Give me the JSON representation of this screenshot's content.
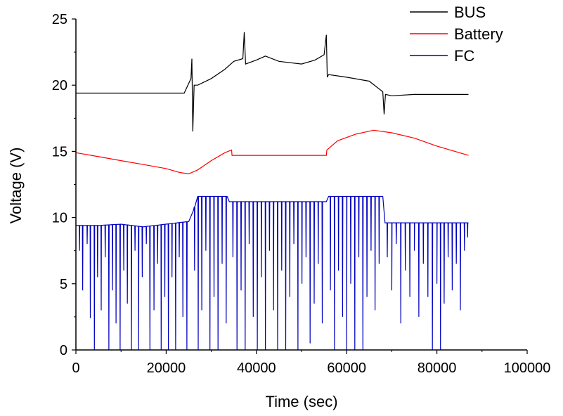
{
  "chart_data": {
    "type": "line",
    "xlabel": "Time (sec)",
    "ylabel": "Voltage (V)",
    "xlim": [
      0,
      100000
    ],
    "ylim": [
      0,
      25
    ],
    "xticks": [
      0,
      20000,
      40000,
      60000,
      80000,
      100000
    ],
    "xtick_labels": [
      "0",
      "20000",
      "40000",
      "60000",
      "80000",
      "100000"
    ],
    "yticks": [
      0,
      5,
      10,
      15,
      20,
      25
    ],
    "ytick_labels": [
      "0",
      "5",
      "10",
      "15",
      "20",
      "25"
    ],
    "grid": false,
    "legend_position": "top-right",
    "series": [
      {
        "name": "BUS",
        "color": "#000000",
        "x": [
          0,
          5000,
          10000,
          15000,
          20000,
          24000,
          25500,
          25700,
          25900,
          26200,
          27000,
          30000,
          33000,
          35000,
          37000,
          37300,
          37600,
          40000,
          42000,
          45000,
          50000,
          53000,
          55000,
          55500,
          55700,
          56000,
          60000,
          65000,
          68000,
          68300,
          68600,
          70000,
          75000,
          80000,
          87000
        ],
        "values": [
          19.4,
          19.4,
          19.4,
          19.4,
          19.4,
          19.4,
          20.5,
          22.0,
          16.5,
          20.0,
          20.0,
          20.5,
          21.2,
          21.8,
          22.0,
          24.0,
          21.6,
          21.9,
          22.2,
          21.8,
          21.6,
          21.9,
          22.3,
          23.8,
          20.6,
          20.8,
          20.6,
          20.3,
          19.5,
          17.8,
          19.3,
          19.2,
          19.3,
          19.3,
          19.3
        ]
      },
      {
        "name": "Battery",
        "color": "#ff0000",
        "x": [
          0,
          5000,
          10000,
          15000,
          20000,
          23000,
          25000,
          27000,
          30000,
          33000,
          34500,
          34600,
          40000,
          45000,
          50000,
          55500,
          55600,
          58000,
          62000,
          66000,
          70000,
          75000,
          80000,
          87000
        ],
        "values": [
          14.9,
          14.6,
          14.3,
          14.0,
          13.7,
          13.4,
          13.3,
          13.6,
          14.3,
          14.9,
          15.1,
          14.7,
          14.7,
          14.7,
          14.7,
          14.7,
          15.1,
          15.8,
          16.3,
          16.6,
          16.4,
          16.0,
          15.4,
          14.7
        ]
      },
      {
        "name": "FC",
        "color": "#0000c0",
        "x": [
          0,
          5000,
          10000,
          15000,
          20000,
          25000,
          26000,
          27000,
          30000,
          33500,
          34000,
          40000,
          45000,
          50000,
          55500,
          56000,
          60000,
          65000,
          68000,
          68500,
          70000,
          75000,
          80000,
          87000
        ],
        "values": [
          9.4,
          9.4,
          9.5,
          9.3,
          9.5,
          9.7,
          10.5,
          11.6,
          11.6,
          11.6,
          11.2,
          11.2,
          11.2,
          11.2,
          11.2,
          11.6,
          11.6,
          11.6,
          11.6,
          9.6,
          9.6,
          9.6,
          9.6,
          9.6
        ],
        "dips": [
          [
            800,
            7.5
          ],
          [
            1500,
            4.5
          ],
          [
            2500,
            8.0
          ],
          [
            3200,
            2.4
          ],
          [
            4100,
            0.0
          ],
          [
            4800,
            5.5
          ],
          [
            5600,
            3.0
          ],
          [
            6500,
            7.0
          ],
          [
            7300,
            0.0
          ],
          [
            8100,
            4.5
          ],
          [
            8900,
            2.0
          ],
          [
            9800,
            0.0
          ],
          [
            10600,
            6.0
          ],
          [
            11400,
            3.5
          ],
          [
            12300,
            0.0
          ],
          [
            13100,
            7.5
          ],
          [
            13900,
            0.0
          ],
          [
            14700,
            5.5
          ],
          [
            15600,
            8.0
          ],
          [
            16400,
            0.0
          ],
          [
            17300,
            3.0
          ],
          [
            18100,
            6.5
          ],
          [
            18900,
            0.0
          ],
          [
            19700,
            4.0
          ],
          [
            20500,
            0.0
          ],
          [
            21300,
            5.5
          ],
          [
            22100,
            0.0
          ],
          [
            22900,
            7.0
          ],
          [
            23700,
            2.5
          ],
          [
            24600,
            0.0
          ],
          [
            26300,
            6.0
          ],
          [
            27100,
            0.0
          ],
          [
            27900,
            3.0
          ],
          [
            28800,
            7.5
          ],
          [
            29700,
            0.0
          ],
          [
            30600,
            4.0
          ],
          [
            31500,
            0.0
          ],
          [
            32400,
            6.5
          ],
          [
            33300,
            2.0
          ],
          [
            34800,
            7.0
          ],
          [
            35700,
            0.0
          ],
          [
            36600,
            4.5
          ],
          [
            37500,
            0.0
          ],
          [
            38400,
            8.0
          ],
          [
            39300,
            2.5
          ],
          [
            40200,
            0.0
          ],
          [
            41100,
            5.5
          ],
          [
            42000,
            0.0
          ],
          [
            42900,
            7.5
          ],
          [
            43800,
            3.0
          ],
          [
            44700,
            0.0
          ],
          [
            45600,
            6.0
          ],
          [
            46500,
            0.0
          ],
          [
            47400,
            4.0
          ],
          [
            48300,
            8.0
          ],
          [
            49200,
            0.0
          ],
          [
            50100,
            5.0
          ],
          [
            51000,
            7.0
          ],
          [
            51900,
            0.5
          ],
          [
            52800,
            3.5
          ],
          [
            53700,
            6.5
          ],
          [
            54600,
            2.0
          ],
          [
            56400,
            4.5
          ],
          [
            57300,
            0.0
          ],
          [
            58200,
            6.0
          ],
          [
            59100,
            2.5
          ],
          [
            60000,
            0.0
          ],
          [
            60900,
            5.0
          ],
          [
            61800,
            0.0
          ],
          [
            62700,
            7.0
          ],
          [
            63600,
            0.0
          ],
          [
            64500,
            4.0
          ],
          [
            65400,
            7.5
          ],
          [
            66300,
            3.0
          ],
          [
            67200,
            6.5
          ],
          [
            69000,
            7.0
          ],
          [
            70000,
            4.5
          ],
          [
            71000,
            8.0
          ],
          [
            72000,
            2.0
          ],
          [
            73000,
            6.0
          ],
          [
            74000,
            4.0
          ],
          [
            75000,
            7.5
          ],
          [
            76000,
            2.5
          ],
          [
            77000,
            6.5
          ],
          [
            78000,
            4.0
          ],
          [
            79000,
            0.0
          ],
          [
            80000,
            5.0
          ],
          [
            80800,
            0.0
          ],
          [
            81600,
            3.5
          ],
          [
            82500,
            7.0
          ],
          [
            83400,
            4.5
          ],
          [
            84300,
            6.5
          ],
          [
            85200,
            3.0
          ],
          [
            86100,
            7.5
          ],
          [
            86800,
            8.5
          ]
        ]
      }
    ]
  }
}
